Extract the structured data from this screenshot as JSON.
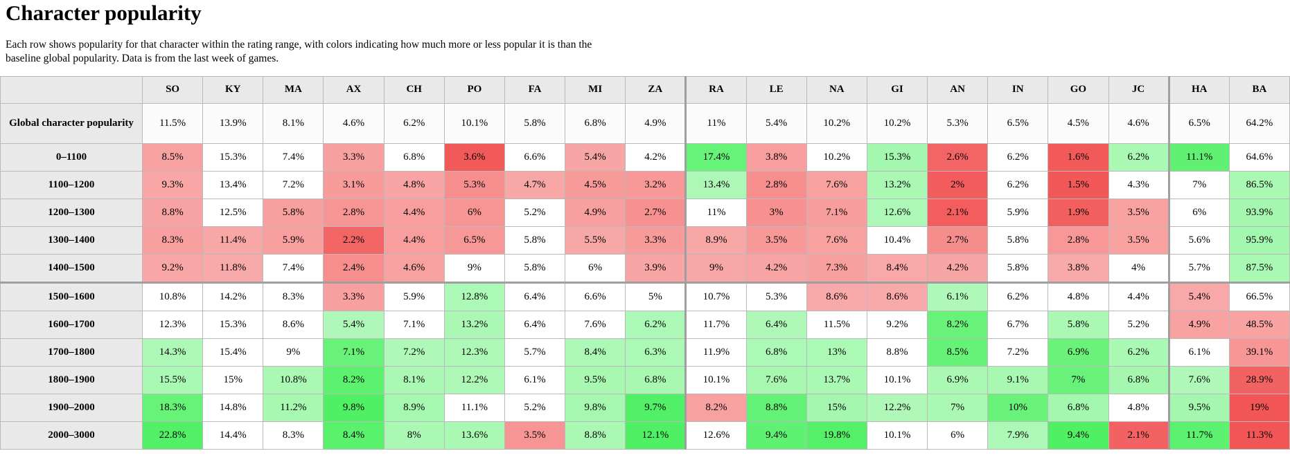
{
  "page": {
    "title": "Character popularity",
    "description": "Each row shows popularity for that character within the rating range, with colors indicating how much more or less popular it is than the baseline global popularity. Data is from the last week of games."
  },
  "chart_data": {
    "type": "heatmap",
    "value_format": "percent",
    "columns": [
      "SO",
      "KY",
      "MA",
      "AX",
      "CH",
      "PO",
      "FA",
      "MI",
      "ZA",
      "RA",
      "LE",
      "NA",
      "GI",
      "AN",
      "IN",
      "GO",
      "JC",
      "HA",
      "BA"
    ],
    "thick_border_before_columns": [
      "RA",
      "HA"
    ],
    "baseline_label": "Global character popularity",
    "baseline": [
      11.5,
      13.9,
      8.1,
      4.6,
      6.2,
      10.1,
      5.8,
      6.8,
      4.9,
      11,
      5.4,
      10.2,
      10.2,
      5.3,
      6.5,
      4.5,
      4.6,
      6.5,
      64.2
    ],
    "rows": [
      {
        "label": "0–1100",
        "section_start": false,
        "values": [
          8.5,
          15.3,
          7.4,
          3.3,
          6.8,
          3.6,
          6.6,
          5.4,
          4.2,
          17.4,
          3.8,
          10.2,
          15.3,
          2.6,
          6.2,
          1.6,
          6.2,
          11.1,
          64.6
        ]
      },
      {
        "label": "1100–1200",
        "section_start": false,
        "values": [
          9.3,
          13.4,
          7.2,
          3.1,
          4.8,
          5.3,
          4.7,
          4.5,
          3.2,
          13.4,
          2.8,
          7.6,
          13.2,
          2,
          6.2,
          1.5,
          4.3,
          7,
          86.5
        ]
      },
      {
        "label": "1200–1300",
        "section_start": false,
        "values": [
          8.8,
          12.5,
          5.8,
          2.8,
          4.4,
          6,
          5.2,
          4.9,
          2.7,
          11,
          3,
          7.1,
          12.6,
          2.1,
          5.9,
          1.9,
          3.5,
          6,
          93.9
        ]
      },
      {
        "label": "1300–1400",
        "section_start": false,
        "values": [
          8.3,
          11.4,
          5.9,
          2.2,
          4.4,
          6.5,
          5.8,
          5.5,
          3.3,
          8.9,
          3.5,
          7.6,
          10.4,
          2.7,
          5.8,
          2.8,
          3.5,
          5.6,
          95.9
        ]
      },
      {
        "label": "1400–1500",
        "section_start": false,
        "values": [
          9.2,
          11.8,
          7.4,
          2.4,
          4.6,
          9,
          5.8,
          6,
          3.9,
          9,
          4.2,
          7.3,
          8.4,
          4.2,
          5.8,
          3.8,
          4,
          5.7,
          87.5
        ]
      },
      {
        "label": "1500–1600",
        "section_start": true,
        "values": [
          10.8,
          14.2,
          8.3,
          3.3,
          5.9,
          12.8,
          6.4,
          6.6,
          5,
          10.7,
          5.3,
          8.6,
          8.6,
          6.1,
          6.2,
          4.8,
          4.4,
          5.4,
          66.5
        ]
      },
      {
        "label": "1600–1700",
        "section_start": false,
        "values": [
          12.3,
          15.3,
          8.6,
          5.4,
          7.1,
          13.2,
          6.4,
          7.6,
          6.2,
          11.7,
          6.4,
          11.5,
          9.2,
          8.2,
          6.7,
          5.8,
          5.2,
          4.9,
          48.5
        ]
      },
      {
        "label": "1700–1800",
        "section_start": false,
        "values": [
          14.3,
          15.4,
          9,
          7.1,
          7.2,
          12.3,
          5.7,
          8.4,
          6.3,
          11.9,
          6.8,
          13,
          8.8,
          8.5,
          7.2,
          6.9,
          6.2,
          6.1,
          39.1
        ]
      },
      {
        "label": "1800–1900",
        "section_start": false,
        "values": [
          15.5,
          15,
          10.8,
          8.2,
          8.1,
          12.2,
          6.1,
          9.5,
          6.8,
          10.1,
          7.6,
          13.7,
          10.1,
          6.9,
          9.1,
          7,
          6.8,
          7.6,
          28.9
        ]
      },
      {
        "label": "1900–2000",
        "section_start": false,
        "values": [
          18.3,
          14.8,
          11.2,
          9.8,
          8.9,
          11.1,
          5.2,
          9.8,
          9.7,
          8.2,
          8.8,
          15,
          12.2,
          7,
          10,
          6.8,
          4.8,
          9.5,
          19
        ]
      },
      {
        "label": "2000–3000",
        "section_start": false,
        "values": [
          22.8,
          14.4,
          8.3,
          8.4,
          8,
          13.6,
          3.5,
          8.8,
          12.1,
          12.6,
          9.4,
          19.8,
          10.1,
          6,
          7.9,
          9.4,
          2.1,
          11.7,
          11.3
        ]
      }
    ],
    "colors": {
      "below_baseline": "#f25555",
      "above_baseline": "#50f064",
      "neutral": "#ffffff",
      "header_bg": "#e9e9e9"
    }
  }
}
